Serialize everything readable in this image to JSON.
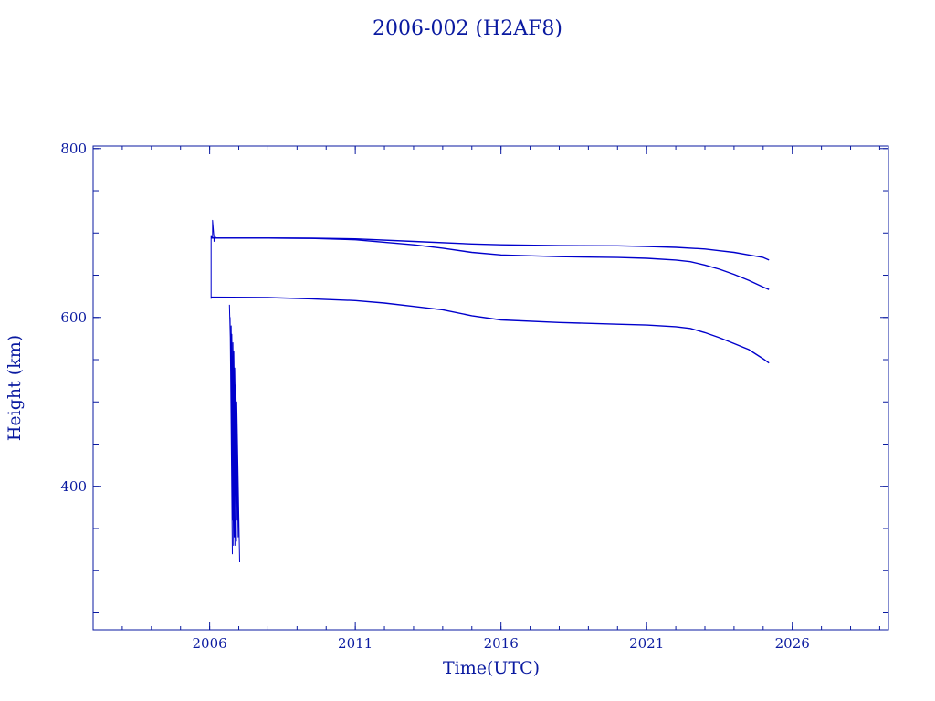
{
  "chart_data": {
    "type": "line",
    "title": "2006-002 (H2AF8)",
    "xlabel": "Time(UTC)",
    "ylabel": "Height (km)",
    "xlim": [
      2002.0,
      2029.3
    ],
    "ylim": [
      230,
      803
    ],
    "x_ticks": [
      2006,
      2011,
      2016,
      2021,
      2026
    ],
    "x_tick_labels": [
      "2006",
      "2011",
      "2016",
      "2021",
      "2026"
    ],
    "y_ticks": [
      400,
      600,
      800
    ],
    "y_tick_labels": [
      "400",
      "600",
      "800"
    ],
    "y_minor_step": 50,
    "x_minor_step": 1,
    "grid": false,
    "color": "#0000cc",
    "series": [
      {
        "x": [
          2006.05,
          2006.1,
          2008,
          2009.5,
          2011,
          2013,
          2015,
          2016,
          2018,
          2020,
          2021,
          2022,
          2023,
          2023.5,
          2024,
          2024.5,
          2025,
          2025.2
        ],
        "values": [
          694,
          694,
          694,
          693.8,
          693,
          690,
          687,
          686,
          685,
          684.8,
          684,
          683,
          681,
          679,
          677,
          674,
          671,
          668
        ]
      },
      {
        "x": [
          2006.05,
          2008,
          2009.5,
          2011,
          2012,
          2013,
          2014,
          2015,
          2016,
          2018,
          2020,
          2021,
          2022,
          2022.5,
          2023,
          2023.5,
          2024,
          2024.5,
          2025,
          2025.2
        ],
        "values": [
          694,
          694,
          693.6,
          692,
          689,
          686,
          682,
          677,
          674,
          672,
          671,
          670,
          668,
          666,
          662,
          657,
          651,
          644,
          636,
          633
        ]
      },
      {
        "x": [
          2006.05,
          2008,
          2009.5,
          2011,
          2012,
          2013,
          2014,
          2015,
          2016,
          2018,
          2020,
          2021,
          2022,
          2022.5,
          2023,
          2023.5,
          2024,
          2024.5,
          2025,
          2025.2
        ],
        "values": [
          624,
          623.5,
          622,
          620,
          617,
          613,
          609,
          602,
          597,
          594,
          592,
          591,
          589,
          587,
          582,
          576,
          569,
          562,
          551,
          546
        ]
      },
      {
        "x": [
          2006.05,
          2006.05,
          2006.1,
          2006.1,
          2006.15,
          2006.15,
          2006.2
        ],
        "values": [
          622,
          696,
          694,
          715,
          694,
          690,
          696
        ]
      },
      {
        "x": [
          2006.68,
          2006.72,
          2006.75,
          2006.78,
          2006.7,
          2006.8,
          2006.74,
          2006.82,
          2006.76,
          2006.85,
          2006.8,
          2006.88,
          2006.83,
          2006.92,
          2006.86,
          2006.95,
          2006.9,
          2006.98,
          2006.93,
          2007.03
        ],
        "values": [
          615,
          560,
          470,
          320,
          600,
          360,
          590,
          330,
          580,
          340,
          570,
          330,
          560,
          335,
          540,
          360,
          520,
          340,
          500,
          310
        ]
      }
    ]
  }
}
